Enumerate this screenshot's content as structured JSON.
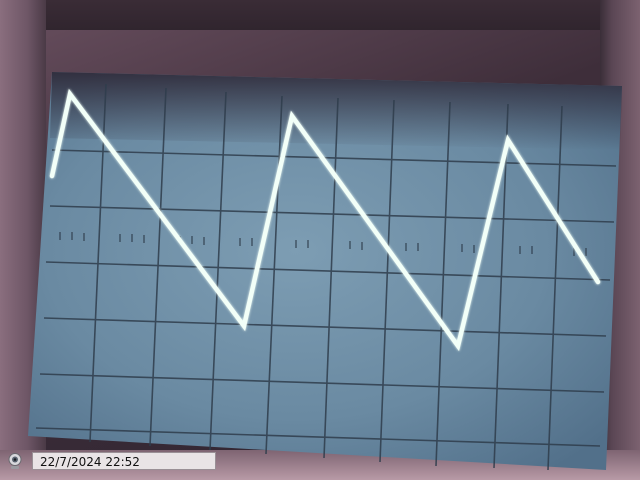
{
  "overlay": {
    "timestamp": "22/7/2024 22:52"
  },
  "icons": {
    "capture": "webcam-icon"
  },
  "colors": {
    "screen": "#6f8fa6",
    "trace": "#f2fff8",
    "grid": "#2c3a48"
  }
}
